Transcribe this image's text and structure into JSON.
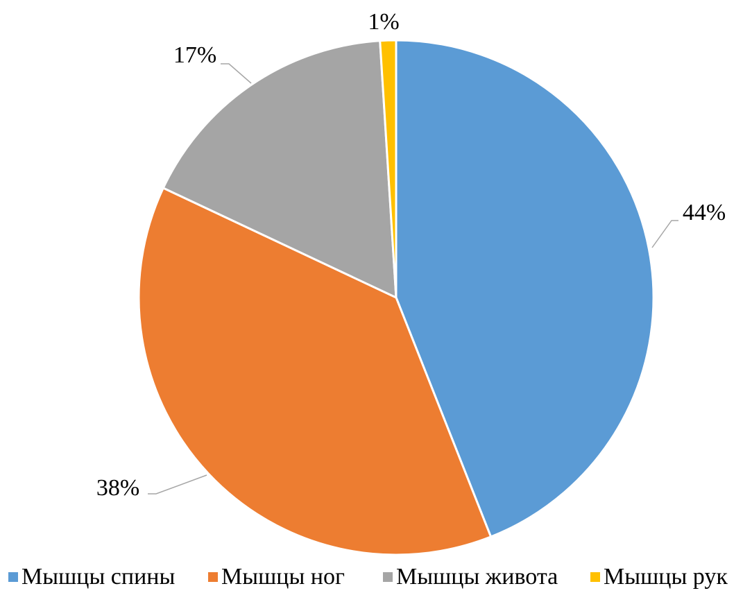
{
  "chart_data": {
    "type": "pie",
    "categories": [
      "Мышцы спины",
      "Мышцы ног",
      "Мышцы живота",
      "Мышцы рук"
    ],
    "values": [
      44,
      38,
      17,
      1
    ],
    "value_labels": [
      "44%",
      "38%",
      "17%",
      "1%"
    ],
    "colors": [
      "#5b9bd5",
      "#ed7d31",
      "#a5a5a5",
      "#ffc000"
    ],
    "legend": "bottom"
  }
}
